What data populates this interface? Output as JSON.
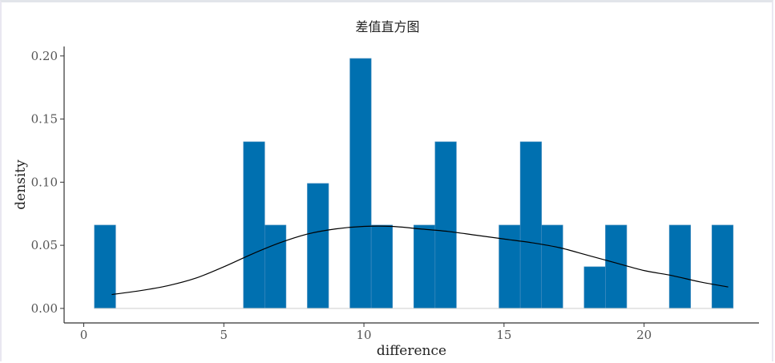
{
  "chart_data": {
    "type": "bar",
    "title": "差值直方图",
    "xlabel": "difference",
    "ylabel": "density",
    "xlim": [
      -0.7,
      24.1
    ],
    "ylim": [
      -0.0115,
      0.2075
    ],
    "x_ticks": [
      0,
      5,
      10,
      15,
      20
    ],
    "y_ticks": [
      0.0,
      0.05,
      0.1,
      0.15,
      0.2
    ],
    "x_tick_labels": [
      "0",
      "5",
      "10",
      "15",
      "20"
    ],
    "y_tick_labels": [
      "0.00",
      "0.05",
      "0.10",
      "0.15",
      "0.20"
    ],
    "grid": false,
    "bar_color": "#0070b0",
    "bin_width": 0.76,
    "bins": [
      {
        "x": 0.76,
        "density": 0.066
      },
      {
        "x": 6.08,
        "density": 0.132
      },
      {
        "x": 6.84,
        "density": 0.066
      },
      {
        "x": 8.36,
        "density": 0.099
      },
      {
        "x": 9.88,
        "density": 0.198
      },
      {
        "x": 10.64,
        "density": 0.066
      },
      {
        "x": 12.16,
        "density": 0.066
      },
      {
        "x": 12.92,
        "density": 0.132
      },
      {
        "x": 15.2,
        "density": 0.066
      },
      {
        "x": 15.96,
        "density": 0.132
      },
      {
        "x": 16.72,
        "density": 0.066
      },
      {
        "x": 18.24,
        "density": 0.033
      },
      {
        "x": 19.0,
        "density": 0.066
      },
      {
        "x": 21.28,
        "density": 0.066
      },
      {
        "x": 22.8,
        "density": 0.066
      }
    ],
    "density_curve": {
      "color": "#000000",
      "x": [
        1,
        2,
        3,
        4,
        5,
        6,
        7,
        8,
        9,
        10,
        11,
        12,
        13,
        14,
        15,
        16,
        17,
        18,
        19,
        20,
        21,
        22,
        23
      ],
      "y": [
        0.011,
        0.014,
        0.018,
        0.024,
        0.033,
        0.043,
        0.052,
        0.059,
        0.063,
        0.065,
        0.065,
        0.063,
        0.061,
        0.058,
        0.055,
        0.052,
        0.048,
        0.042,
        0.036,
        0.03,
        0.026,
        0.021,
        0.017
      ]
    }
  }
}
